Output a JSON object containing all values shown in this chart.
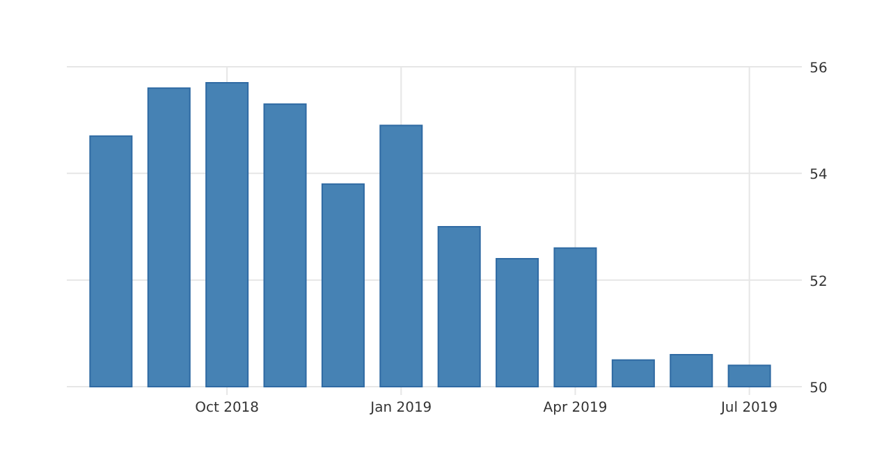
{
  "chart_data": {
    "type": "bar",
    "categories": [
      null,
      null,
      "Oct 2018",
      null,
      null,
      "Jan 2019",
      null,
      null,
      "Apr 2019",
      null,
      null,
      "Jul 2019"
    ],
    "values": [
      54.7,
      55.6,
      55.7,
      55.3,
      53.8,
      54.9,
      53.0,
      52.4,
      52.6,
      50.5,
      50.6,
      50.4
    ],
    "color": "#4682b4",
    "ylim": [
      50,
      56
    ],
    "yticks": [
      50,
      52,
      54,
      56
    ],
    "grid": true
  }
}
